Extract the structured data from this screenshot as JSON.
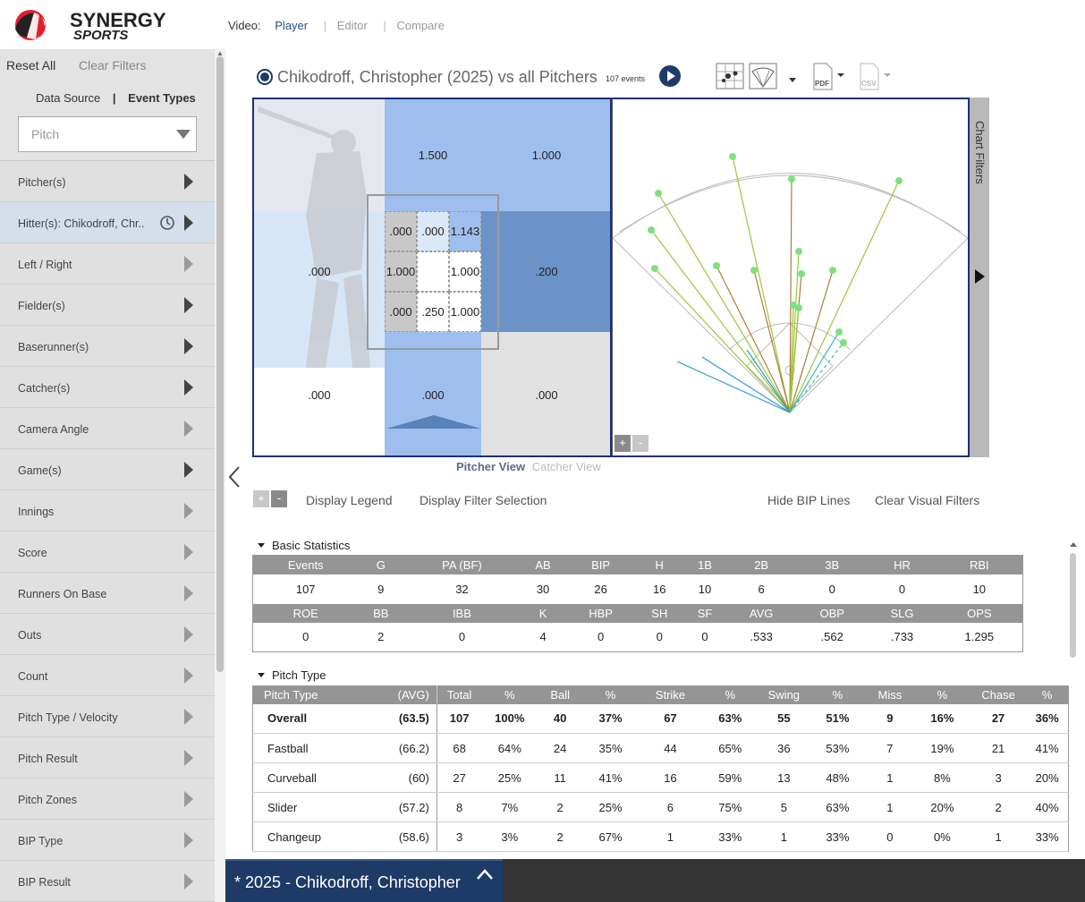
{
  "header": {
    "logo_line1": "SYNERGY",
    "logo_line2": "SPORTS",
    "video_label": "Video:",
    "video_tabs": [
      "Player",
      "Editor",
      "Compare"
    ]
  },
  "sidebar": {
    "reset_all": "Reset All",
    "clear_filters": "Clear Filters",
    "tabs": [
      "Data Source",
      "Event Types"
    ],
    "event_type_select": "Pitch",
    "items": [
      {
        "label": "Pitcher(s)",
        "active": true
      },
      {
        "label": "Hitter(s): Chikodroff, Chr..",
        "active": true,
        "selected": true
      },
      {
        "label": "Left / Right",
        "active": false
      },
      {
        "label": "Fielder(s)",
        "active": true
      },
      {
        "label": "Baserunner(s)",
        "active": true
      },
      {
        "label": "Catcher(s)",
        "active": true
      },
      {
        "label": "Camera Angle",
        "active": false
      },
      {
        "label": "Game(s)",
        "active": true
      },
      {
        "label": "Innings",
        "active": false
      },
      {
        "label": "Score",
        "active": false
      },
      {
        "label": "Runners On Base",
        "active": false
      },
      {
        "label": "Outs",
        "active": false
      },
      {
        "label": "Count",
        "active": false
      },
      {
        "label": "Pitch Type / Velocity",
        "active": false
      },
      {
        "label": "Pitch Result",
        "active": false
      },
      {
        "label": "Pitch Zones",
        "active": false
      },
      {
        "label": "BIP Type",
        "active": false
      },
      {
        "label": "BIP Result",
        "active": false
      }
    ]
  },
  "title": {
    "text": "Chikodroff, Christopher (2025) vs all Pitchers",
    "event_count": "107 events"
  },
  "zones": {
    "top_mid": "1.500",
    "top_right": "1.000",
    "mid_left": ".000",
    "mid_right": ".200",
    "bot_left": ".000",
    "bot_mid": ".000",
    "bot_right": ".000",
    "inner": [
      ".000",
      ".000",
      "1.143",
      "1.000",
      "",
      "1.000",
      ".000",
      ".250",
      "1.000"
    ]
  },
  "chart_filters_label": "Chart Filters",
  "view_toggle": {
    "pitcher": "Pitcher View",
    "catcher": "Catcher View"
  },
  "actions": {
    "display_legend": "Display Legend",
    "display_filter_selection": "Display Filter Selection",
    "hide_bip_lines": "Hide BIP Lines",
    "clear_visual_filters": "Clear Visual Filters"
  },
  "basic_stats": {
    "title": "Basic Statistics",
    "header1": [
      "Events",
      "G",
      "PA (BF)",
      "AB",
      "BIP",
      "H",
      "1B",
      "2B",
      "3B",
      "HR",
      "RBI"
    ],
    "row1": [
      "107",
      "9",
      "32",
      "30",
      "26",
      "16",
      "10",
      "6",
      "0",
      "0",
      "10"
    ],
    "header2": [
      "ROE",
      "BB",
      "IBB",
      "K",
      "HBP",
      "SH",
      "SF",
      "AVG",
      "OBP",
      "SLG",
      "OPS"
    ],
    "row2": [
      "0",
      "2",
      "0",
      "4",
      "0",
      "0",
      "0",
      ".533",
      ".562",
      ".733",
      "1.295"
    ]
  },
  "pitch_type": {
    "title": "Pitch Type",
    "headers": [
      "Pitch Type",
      "(AVG)",
      "Total",
      "%",
      "Ball",
      "%",
      "Strike",
      "%",
      "Swing",
      "%",
      "Miss",
      "%",
      "Chase",
      "%"
    ],
    "rows": [
      [
        "Overall",
        "(63.5)",
        "107",
        "100%",
        "40",
        "37%",
        "67",
        "63%",
        "55",
        "51%",
        "9",
        "16%",
        "27",
        "36%"
      ],
      [
        "Fastball",
        "(66.2)",
        "68",
        "64%",
        "24",
        "35%",
        "44",
        "65%",
        "36",
        "53%",
        "7",
        "19%",
        "21",
        "41%"
      ],
      [
        "Curveball",
        "(60)",
        "27",
        "25%",
        "11",
        "41%",
        "16",
        "59%",
        "13",
        "48%",
        "1",
        "8%",
        "3",
        "20%"
      ],
      [
        "Slider",
        "(57.2)",
        "8",
        "7%",
        "2",
        "25%",
        "6",
        "75%",
        "5",
        "63%",
        "1",
        "20%",
        "2",
        "40%"
      ],
      [
        "Changeup",
        "(58.6)",
        "3",
        "3%",
        "2",
        "67%",
        "1",
        "33%",
        "1",
        "33%",
        "0",
        "0%",
        "1",
        "33%"
      ]
    ]
  },
  "footer": {
    "label": "* 2025 - Chikodroff, Christopher"
  }
}
